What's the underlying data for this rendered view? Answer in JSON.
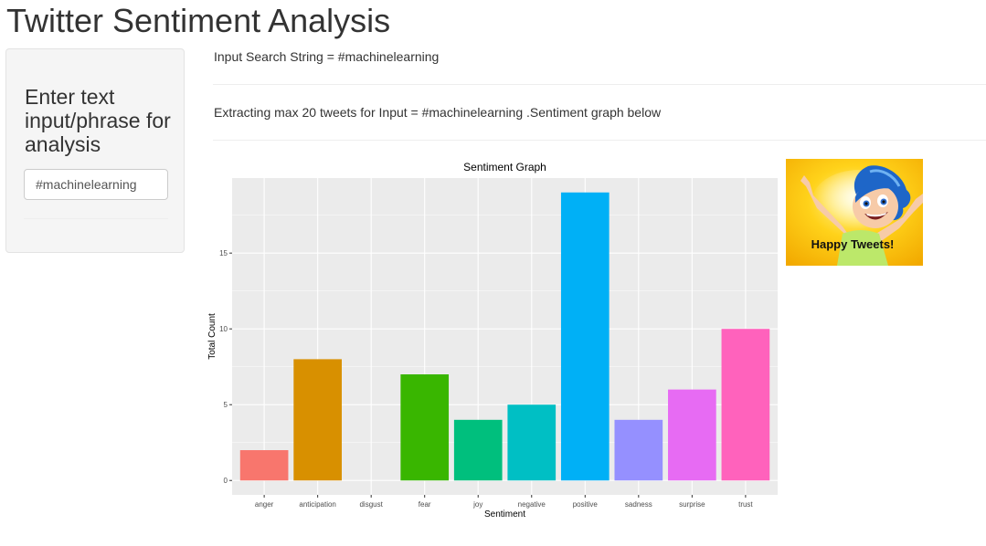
{
  "app": {
    "title": "Twitter Sentiment Analysis"
  },
  "sidebar": {
    "heading": "Enter text input/phrase for analysis",
    "search_value": "#machinelearning"
  },
  "main": {
    "input_line": "Input Search String = #machinelearning",
    "extract_line": "Extracting max 20 tweets for Input = #machinelearning .Sentiment graph below"
  },
  "image": {
    "caption": "Happy Tweets!"
  },
  "chart_data": {
    "type": "bar",
    "title": "Sentiment Graph",
    "xlabel": "Sentiment",
    "ylabel": "Total Count",
    "categories": [
      "anger",
      "anticipation",
      "disgust",
      "fear",
      "joy",
      "negative",
      "positive",
      "sadness",
      "surprise",
      "trust"
    ],
    "values": [
      2,
      8,
      0,
      7,
      4,
      5,
      19,
      4,
      6,
      10
    ],
    "colors": [
      "#F8766D",
      "#D89000",
      "#A3A500",
      "#39B600",
      "#00BF7D",
      "#00BFC4",
      "#00B0F6",
      "#9590FF",
      "#E76BF3",
      "#FF62BC"
    ],
    "yticks": [
      0,
      5,
      10,
      15
    ],
    "ylim": [
      -0.95,
      19.95
    ],
    "panel_background": "#EBEBEB",
    "grid": true,
    "legend": "none"
  }
}
